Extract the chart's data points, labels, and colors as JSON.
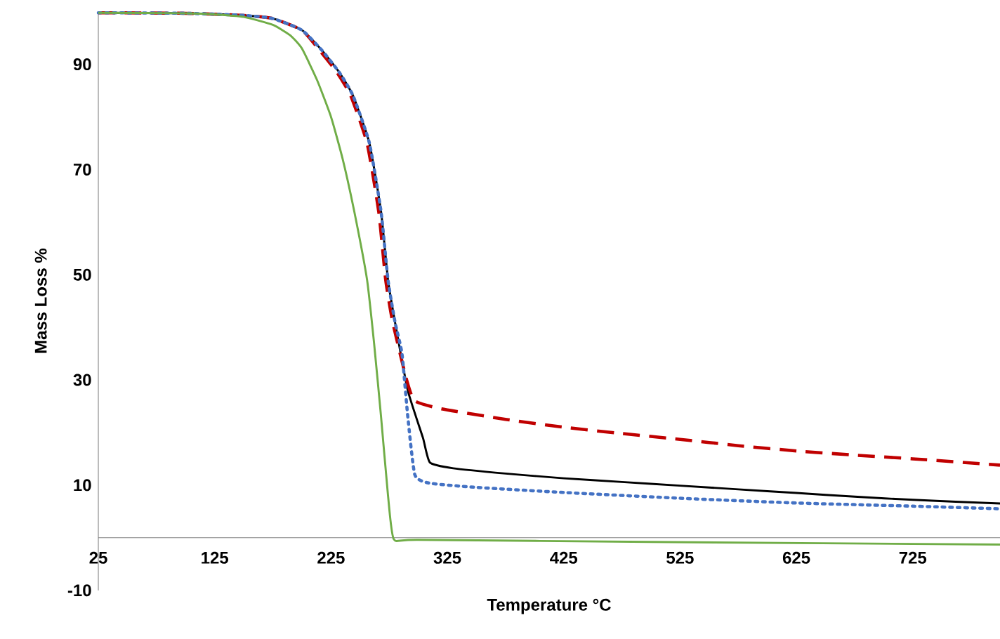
{
  "chart_data": {
    "type": "line",
    "xlabel": "Temperature °C",
    "ylabel": "Mass Loss %",
    "xlim": [
      25,
      800
    ],
    "ylim": [
      -10,
      100
    ],
    "xticks": [
      25,
      125,
      225,
      325,
      425,
      525,
      625,
      725
    ],
    "yticks": [
      -10,
      10,
      30,
      50,
      70,
      90
    ],
    "series": [
      {
        "color": "#000000",
        "line_style": "solid",
        "x": [
          25,
          100,
          150,
          175,
          200,
          217,
          232,
          244,
          258,
          268,
          274,
          280,
          291,
          304,
          310,
          330,
          375,
          425,
          475,
          525,
          575,
          625,
          675,
          725,
          800
        ],
        "values": [
          99.8,
          99.7,
          99.3,
          98.7,
          96.5,
          92.7,
          88.5,
          84,
          75,
          62,
          49,
          41,
          28,
          19,
          14.3,
          13.2,
          12.2,
          11.3,
          10.6,
          9.9,
          9.2,
          8.5,
          7.8,
          7.2,
          6.5
        ]
      },
      {
        "color": "#c00000",
        "line_style": "dashed",
        "x": [
          25,
          100,
          150,
          175,
          200,
          215,
          230,
          242,
          256,
          266,
          272,
          278,
          290,
          297,
          320,
          375,
          425,
          475,
          525,
          575,
          625,
          675,
          725,
          800
        ],
        "values": [
          99.8,
          99.7,
          99.3,
          98.7,
          96.5,
          92.7,
          88.5,
          84,
          75,
          62,
          49,
          41,
          30,
          26,
          24.5,
          22.5,
          21,
          19.8,
          18.7,
          17.5,
          16.5,
          15.7,
          15,
          13.8
        ]
      },
      {
        "color": "#4472c4",
        "line_style": "dotted",
        "x": [
          25,
          100,
          150,
          175,
          200,
          217,
          232,
          244,
          258,
          268,
          274,
          280,
          286,
          291,
          297,
          309,
          348,
          425,
          525,
          625,
          725,
          800
        ],
        "values": [
          99.8,
          99.7,
          99.3,
          98.7,
          96.5,
          92.7,
          88.5,
          84,
          75,
          62,
          49,
          41,
          35,
          23,
          12,
          10.4,
          9.6,
          8.6,
          7.5,
          6.6,
          6,
          5.5
        ]
      },
      {
        "color": "#70ad47",
        "line_style": "solid",
        "x": [
          25,
          100,
          125,
          150,
          175,
          190,
          200,
          213,
          225,
          235,
          245,
          256,
          262,
          268,
          274,
          279,
          300,
          500,
          800
        ],
        "values": [
          99.8,
          99.7,
          99.5,
          99,
          97.5,
          95.5,
          93,
          87,
          80,
          72,
          62,
          49,
          37,
          23,
          8,
          -0.3,
          -0.4,
          -0.8,
          -1.3
        ]
      }
    ]
  }
}
